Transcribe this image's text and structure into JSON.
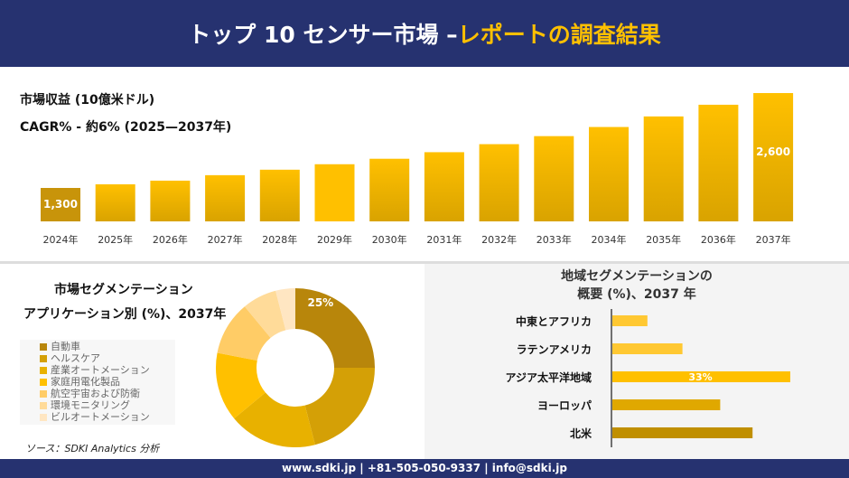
{
  "header": {
    "title_main": "トップ 10 センサー市場 –",
    "title_accent": "レポートの調査結果"
  },
  "colors": {
    "navy": "#263270",
    "accent": "#ffc000"
  },
  "chart_data": [
    {
      "type": "bar",
      "title": "市場収益 (10億米ドル)",
      "subtitle": "CAGR% - 約6% (2025—2037年)",
      "categories": [
        "2024年",
        "2025年",
        "2026年",
        "2027年",
        "2028年",
        "2029年",
        "2030年",
        "2031年",
        "2032年",
        "2033年",
        "2034年",
        "2035年",
        "2036年",
        "2037年"
      ],
      "values": [
        1300,
        1350,
        1400,
        1475,
        1550,
        1625,
        1700,
        1790,
        1900,
        2010,
        2135,
        2280,
        2440,
        2600
      ],
      "data_labels": {
        "0": "1,300",
        "13": "2,600"
      }
    },
    {
      "type": "pie",
      "title": "市場セグメンテーション",
      "subtitle": "アプリケーション別 (%)、2037年",
      "labels": [
        "自動車",
        "ヘルスケア",
        "産業オートメーション",
        "家庭用電化製品",
        "航空宇宙および防衛",
        "環境モニタリング",
        "ビルオートメーション"
      ],
      "values": [
        25,
        21,
        18,
        14,
        11,
        7,
        4
      ],
      "colors": [
        "#b8860b",
        "#d4a006",
        "#e8b100",
        "#ffc000",
        "#ffcc66",
        "#ffdb99",
        "#ffe6c2"
      ],
      "data_labels": {
        "0": "25%"
      }
    },
    {
      "type": "bar",
      "orientation": "horizontal",
      "title": "地域セグメンテーションの",
      "subtitle": "概要 (%)、2037 年",
      "categories": [
        "中東とアフリカ",
        "ラテンアメリカ",
        "アジア太平洋地域",
        "ヨーロッパ",
        "北米"
      ],
      "values": [
        6.5,
        13,
        33,
        20,
        26
      ],
      "colors": [
        "#ffc832",
        "#ffc832",
        "#ffc000",
        "#e0a800",
        "#c08f00"
      ],
      "data_labels": {
        "2": "33%"
      }
    }
  ],
  "source": "ソース：SDKI Analytics 分析",
  "footer": "www.sdki.jp | +81-505-050-9337 | info@sdki.jp"
}
